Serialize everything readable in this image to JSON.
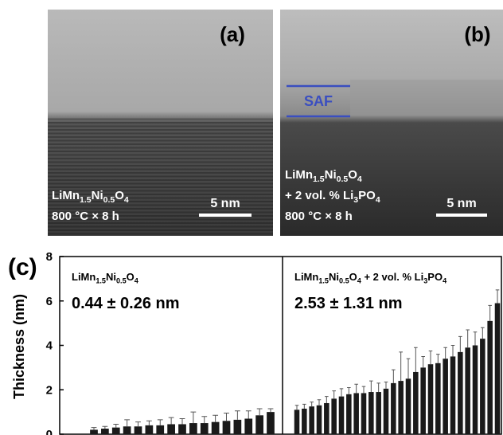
{
  "images": [
    {
      "label": "(a)",
      "lines": [
        [
          "LiMn",
          "1.5",
          "Ni",
          "0.5",
          "O",
          "4"
        ],
        [
          "800 °C × 8 h"
        ]
      ],
      "scale_bar": "5 nm"
    },
    {
      "label": "(b)",
      "lines": [
        [
          "LiMn",
          "1.5",
          "Ni",
          "0.5",
          "O",
          "4"
        ],
        [
          "+ 2 vol. % Li",
          "3",
          "PO",
          "4"
        ],
        [
          "800 °C × 8 h"
        ]
      ],
      "scale_bar": "5 nm",
      "annotation": "SAF"
    }
  ],
  "chart_data": {
    "type": "bar",
    "label": "(c)",
    "ylabel": "Thickness (nm)",
    "ylim": [
      0,
      8
    ],
    "yticks": [
      0,
      2,
      4,
      6,
      8
    ],
    "color": "#1a1a1a",
    "panels": [
      {
        "title": [
          "LiMn",
          "1.5",
          "Ni",
          "0.5",
          "O",
          "4"
        ],
        "stat": "0.44 ± 0.26 nm",
        "values": [
          0.2,
          0.25,
          0.3,
          0.35,
          0.35,
          0.4,
          0.4,
          0.45,
          0.45,
          0.5,
          0.5,
          0.55,
          0.6,
          0.65,
          0.7,
          0.85,
          1.0
        ],
        "errors": [
          0.1,
          0.1,
          0.15,
          0.3,
          0.2,
          0.2,
          0.25,
          0.3,
          0.25,
          0.5,
          0.3,
          0.3,
          0.35,
          0.4,
          0.35,
          0.3,
          0.15
        ]
      },
      {
        "title": [
          "LiMn",
          "1.5",
          "Ni",
          "0.5",
          "O",
          "4",
          " + 2 vol. % Li",
          "3",
          "PO",
          "4"
        ],
        "stat": "2.53 ± 1.31 nm",
        "values": [
          1.1,
          1.15,
          1.25,
          1.3,
          1.4,
          1.6,
          1.7,
          1.8,
          1.85,
          1.85,
          1.9,
          1.9,
          2.05,
          2.3,
          2.4,
          2.5,
          2.8,
          3.0,
          3.15,
          3.2,
          3.4,
          3.5,
          3.7,
          3.9,
          4.0,
          4.3,
          5.1,
          5.9
        ],
        "errors": [
          0.2,
          0.2,
          0.2,
          0.25,
          0.3,
          0.35,
          0.35,
          0.3,
          0.4,
          0.3,
          0.5,
          0.4,
          0.3,
          0.6,
          1.3,
          0.9,
          1.1,
          0.5,
          0.6,
          0.4,
          0.5,
          0.5,
          0.7,
          0.8,
          0.6,
          0.5,
          0.7,
          0.6
        ]
      }
    ]
  }
}
